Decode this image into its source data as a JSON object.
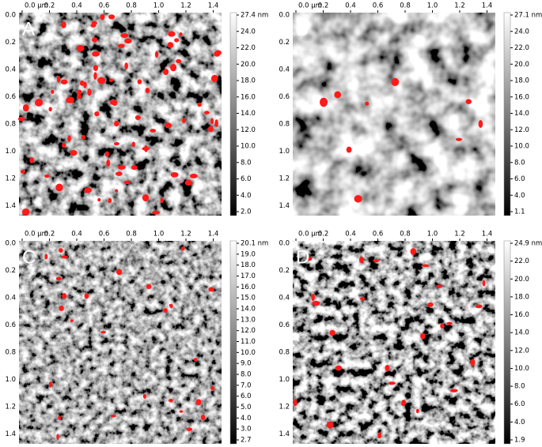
{
  "panels": [
    {
      "label": "A",
      "xticks": [
        "0.0 µm",
        "0.2",
        "0.4",
        "0.6",
        "0.8",
        "1.0",
        "1.2",
        "1.4"
      ],
      "yticks": [
        "0.0",
        "0.2",
        "0.4",
        "0.6",
        "0.8",
        "1.0",
        "1.2",
        "1.4"
      ],
      "colorbar": [
        "27.4 nm",
        "24.0",
        "22.0",
        "20.0",
        "18.0",
        "16.0",
        "14.0",
        "12.0",
        "10.0",
        "8.0",
        "6.0",
        "4.0",
        "2.0"
      ]
    },
    {
      "label": "B",
      "xticks": [
        "0.0 µm",
        "0.2",
        "0.4",
        "0.6",
        "0.8",
        "1.0",
        "1.2",
        "1.4"
      ],
      "yticks": [
        "0.0",
        "0.2",
        "0.4",
        "0.6",
        "0.8",
        "1.0",
        "1.2",
        "1.4"
      ],
      "colorbar": [
        "27.1 nm",
        "24.0",
        "22.0",
        "20.0",
        "18.0",
        "16.0",
        "14.0",
        "12.0",
        "10.0",
        "8.0",
        "6.0",
        "4.0",
        "1.1"
      ]
    },
    {
      "label": "C",
      "xticks": [
        "0.0 µm",
        "0.2",
        "0.4",
        "0.6",
        "0.8",
        "1.0",
        "1.2",
        "1.4"
      ],
      "yticks": [
        "0.0",
        "0.2",
        "0.4",
        "0.6",
        "0.8",
        "1.0",
        "1.2",
        "1.4"
      ],
      "colorbar": [
        "20.1 nm",
        "19.0",
        "18.0",
        "17.0",
        "16.0",
        "15.0",
        "14.0",
        "13.0",
        "12.0",
        "11.0",
        "10.0",
        "9.0",
        "8.0",
        "7.0",
        "6.0",
        "5.0",
        "4.0",
        "3.0",
        "2.7"
      ]
    },
    {
      "label": "D",
      "xticks": [
        "0.0 µm",
        "0.2",
        "0.4",
        "0.6",
        "0.8",
        "1.0",
        "1.2",
        "1.4"
      ],
      "yticks": [
        "0.0",
        "0.2",
        "0.4",
        "0.6",
        "0.8",
        "1.0",
        "1.2",
        "1.4"
      ],
      "colorbar": [
        "24.9 nm",
        "22.0",
        "20.0",
        "18.0",
        "16.0",
        "14.0",
        "12.0",
        "10.0",
        "8.0",
        "6.0",
        "4.0",
        "1.9"
      ]
    }
  ]
}
